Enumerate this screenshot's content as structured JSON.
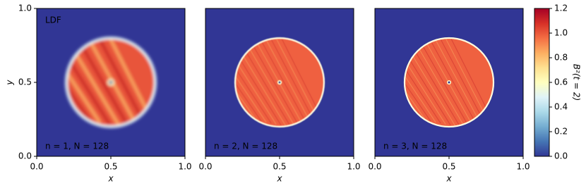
{
  "chart_data": [
    {
      "type": "image",
      "annotation": "LDF",
      "label": "n = 1, N = 128",
      "xlabel": "x",
      "ylabel": "y",
      "xlim": [
        0,
        1
      ],
      "ylim": [
        0,
        1
      ],
      "xticks": [
        {
          "value": 0,
          "label": "0.0"
        },
        0.5,
        {
          "value": 1,
          "label": "1.0"
        }
      ],
      "yticks": [
        {
          "value": 0,
          "label": "0.0"
        },
        0.5,
        {
          "value": 1,
          "label": "1.0"
        }
      ]
    },
    {
      "type": "image",
      "label": "n = 2, N = 128",
      "xlabel": "x",
      "xlim": [
        0,
        1
      ],
      "ylim": [
        0,
        1
      ],
      "xticks": [
        {
          "value": 0,
          "label": "0.0"
        },
        0.5,
        {
          "value": 1,
          "label": "1.0"
        }
      ]
    },
    {
      "type": "image",
      "label": "n = 3, N = 128",
      "xlabel": "x",
      "xlim": [
        0,
        1
      ],
      "ylim": [
        0,
        1
      ],
      "xticks": [
        {
          "value": 0,
          "label": "0.0"
        },
        0.5,
        {
          "value": 1,
          "label": "1.0"
        }
      ]
    }
  ],
  "colorbar": {
    "label": "B²(t = 2)",
    "lim": [
      0,
      1.2
    ],
    "ticks": [
      {
        "value": 0,
        "label": "0.0"
      },
      0.2,
      0.4,
      0.6,
      0.8,
      {
        "value": 1,
        "label": "1.0"
      },
      1.2
    ]
  }
}
